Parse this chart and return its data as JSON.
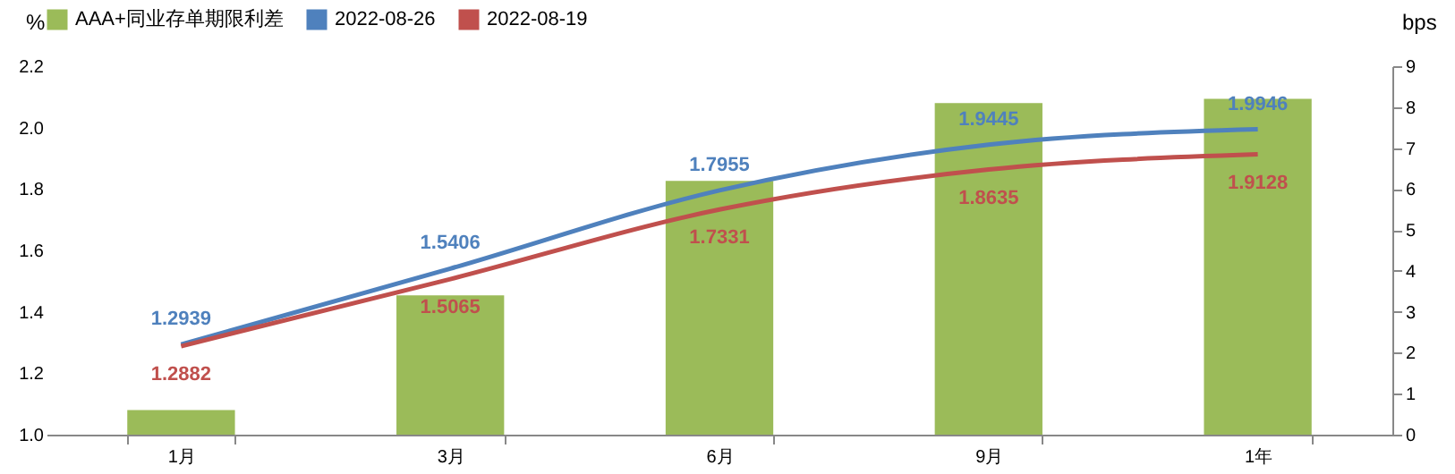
{
  "chart_data": {
    "type": "bar",
    "categories": [
      "1月",
      "3月",
      "6月",
      "9月",
      "1年"
    ],
    "ylabel": "%",
    "y2label": "bps",
    "ylim": [
      1.0,
      2.2
    ],
    "yticks": [
      {
        "value": 1.0,
        "label": "1.0"
      },
      {
        "value": 1.2,
        "label": "1.2"
      },
      {
        "value": 1.4,
        "label": "1.4"
      },
      {
        "value": 1.6,
        "label": "1.6"
      },
      {
        "value": 1.8,
        "label": "1.8"
      },
      {
        "value": 2.0,
        "label": "2.0"
      },
      {
        "value": 2.2,
        "label": "2.2"
      }
    ],
    "y2lim": [
      0,
      9
    ],
    "y2ticks": [
      0,
      1,
      2,
      3,
      4,
      5,
      6,
      7,
      8,
      9
    ],
    "grid": false,
    "legend": "top",
    "series": [
      {
        "name": "AAA+同业存单期限利差",
        "type": "bar",
        "axis": "y2",
        "color": "#9bbb59",
        "values": [
          0.6,
          3.4,
          6.2,
          8.1,
          8.2
        ]
      },
      {
        "name": "2022-08-26",
        "type": "line",
        "color": "#4f81bd",
        "values": [
          1.2939,
          1.5406,
          1.7955,
          1.9445,
          1.9946
        ],
        "value_labels": [
          "1.2939",
          "1.5406",
          "1.7955",
          "1.9445",
          "1.9946"
        ]
      },
      {
        "name": "2022-08-19",
        "type": "line",
        "color": "#c0504d",
        "values": [
          1.2882,
          1.5065,
          1.7331,
          1.8635,
          1.9128
        ],
        "value_labels": [
          "1.2882",
          "1.5065",
          "1.7331",
          "1.8635",
          "1.9128"
        ]
      }
    ]
  }
}
